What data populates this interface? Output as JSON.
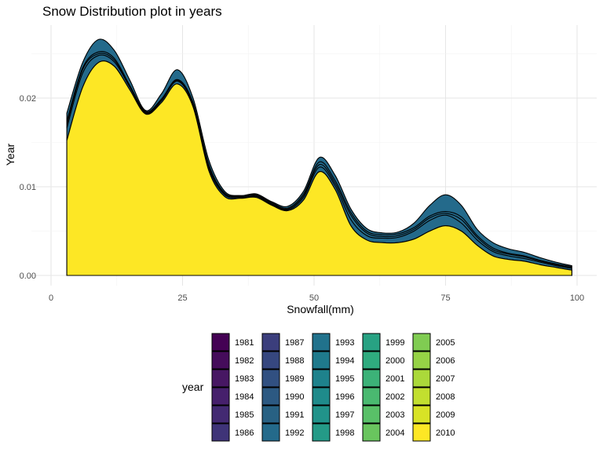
{
  "chart_data": {
    "type": "area",
    "subtype": "stacked density",
    "title": "Snow Distribution plot in years",
    "xlabel": "Snowfall(mm)",
    "ylabel": "Year",
    "xlim": [
      0,
      100
    ],
    "ylim": [
      0,
      0.027
    ],
    "x_ticks": [
      0,
      25,
      50,
      75,
      100
    ],
    "y_ticks": [
      0.0,
      0.01,
      0.02
    ],
    "y_tick_labels": [
      "0.00",
      "0.01",
      "0.02"
    ],
    "grid": true,
    "legend_title": "year",
    "legend_position": "bottom",
    "x": [
      3,
      6,
      9,
      12,
      15,
      18,
      21,
      24,
      27,
      30,
      33,
      36,
      39,
      42,
      45,
      48,
      51,
      54,
      57,
      60,
      63,
      66,
      69,
      72,
      75,
      78,
      81,
      84,
      87,
      90,
      93,
      96,
      99
    ],
    "series": [
      {
        "name": "1981",
        "color": "#440154",
        "values": null
      },
      {
        "name": "1982",
        "color": "#450c5b",
        "values": null
      },
      {
        "name": "1983",
        "color": "#471763",
        "values": null
      },
      {
        "name": "1984",
        "color": "#46206c",
        "values": null
      },
      {
        "name": "1985",
        "color": "#432a72",
        "values": null
      },
      {
        "name": "1986",
        "color": "#3f3478",
        "values": null
      },
      {
        "name": "1987",
        "color": "#3b3e7c",
        "values": null
      },
      {
        "name": "1988",
        "color": "#36477f",
        "values": null
      },
      {
        "name": "1989",
        "color": "#315081",
        "values": null
      },
      {
        "name": "1990",
        "color": "#2c5982",
        "values": null
      },
      {
        "name": "1991",
        "color": "#286183",
        "values": null
      },
      {
        "name": "1992",
        "color": "#246a8b",
        "values": [
          0.0183,
          0.024,
          0.0266,
          0.0254,
          0.022,
          0.0186,
          0.0205,
          0.0232,
          0.02,
          0.013,
          0.0095,
          0.009,
          0.0092,
          0.0083,
          0.0078,
          0.0095,
          0.0133,
          0.0113,
          0.0075,
          0.0053,
          0.0048,
          0.0049,
          0.0059,
          0.0079,
          0.0091,
          0.0079,
          0.0052,
          0.0037,
          0.003,
          0.0026,
          0.002,
          0.0015,
          0.0011
        ]
      },
      {
        "name": "1993",
        "color": "#21728c",
        "values": null
      },
      {
        "name": "1994",
        "color": "#1f7a8c",
        "values": null
      },
      {
        "name": "1995",
        "color": "#1e828c",
        "values": null
      },
      {
        "name": "1996",
        "color": "#1f8b8b",
        "values": null
      },
      {
        "name": "1997",
        "color": "#21938a",
        "values": null
      },
      {
        "name": "1998",
        "color": "#249a87",
        "values": null
      },
      {
        "name": "1999",
        "color": "#28a283",
        "values": null
      },
      {
        "name": "2000",
        "color": "#2fab7f",
        "values": null
      },
      {
        "name": "2001",
        "color": "#3cb278",
        "values": null
      },
      {
        "name": "2002",
        "color": "#4ab970",
        "values": null
      },
      {
        "name": "2003",
        "color": "#59c068",
        "values": null
      },
      {
        "name": "2004",
        "color": "#69c55e",
        "values": null
      },
      {
        "name": "2005",
        "color": "#80cc52",
        "values": null
      },
      {
        "name": "2006",
        "color": "#96d346",
        "values": null
      },
      {
        "name": "2007",
        "color": "#abd93a",
        "values": null
      },
      {
        "name": "2008",
        "color": "#c2df2f",
        "values": null
      },
      {
        "name": "2009",
        "color": "#d8e326",
        "values": null
      },
      {
        "name": "2010",
        "color": "#fde725",
        "values": [
          0.0152,
          0.0212,
          0.024,
          0.0236,
          0.0209,
          0.0182,
          0.0195,
          0.0216,
          0.019,
          0.0118,
          0.0089,
          0.0087,
          0.0088,
          0.0079,
          0.0073,
          0.0085,
          0.0117,
          0.0097,
          0.0056,
          0.004,
          0.0037,
          0.0037,
          0.0041,
          0.005,
          0.0056,
          0.005,
          0.0034,
          0.0022,
          0.0018,
          0.0016,
          0.0012,
          0.0009,
          0.0006
        ]
      }
    ],
    "outline_curves": [
      {
        "values": [
          0.0166,
          0.0228,
          0.0248,
          0.0241,
          0.0212,
          0.0183,
          0.0197,
          0.0219,
          0.0192,
          0.0121,
          0.0091,
          0.0088,
          0.0089,
          0.008,
          0.0074,
          0.0088,
          0.0122,
          0.0101,
          0.0063,
          0.0045,
          0.0042,
          0.0043,
          0.005,
          0.0062,
          0.0068,
          0.0059,
          0.004,
          0.0027,
          0.0022,
          0.0019,
          0.0015,
          0.0011,
          0.0008
        ]
      },
      {
        "values": [
          0.017,
          0.0232,
          0.025,
          0.0243,
          0.0213,
          0.0184,
          0.0198,
          0.022,
          0.0193,
          0.0123,
          0.0092,
          0.0089,
          0.009,
          0.0081,
          0.0075,
          0.009,
          0.0125,
          0.0104,
          0.0068,
          0.0048,
          0.0044,
          0.0045,
          0.0052,
          0.0065,
          0.007,
          0.0063,
          0.0043,
          0.0029,
          0.0024,
          0.0021,
          0.0016,
          0.0012,
          0.0009
        ]
      },
      {
        "values": [
          0.0174,
          0.0234,
          0.0252,
          0.0245,
          0.0214,
          0.0185,
          0.0199,
          0.0221,
          0.0195,
          0.0125,
          0.0093,
          0.009,
          0.0091,
          0.0082,
          0.0076,
          0.0092,
          0.0128,
          0.0107,
          0.0071,
          0.005,
          0.0046,
          0.0047,
          0.0054,
          0.0067,
          0.0072,
          0.0066,
          0.0045,
          0.0031,
          0.0025,
          0.0022,
          0.0017,
          0.0013,
          0.001
        ]
      }
    ]
  }
}
